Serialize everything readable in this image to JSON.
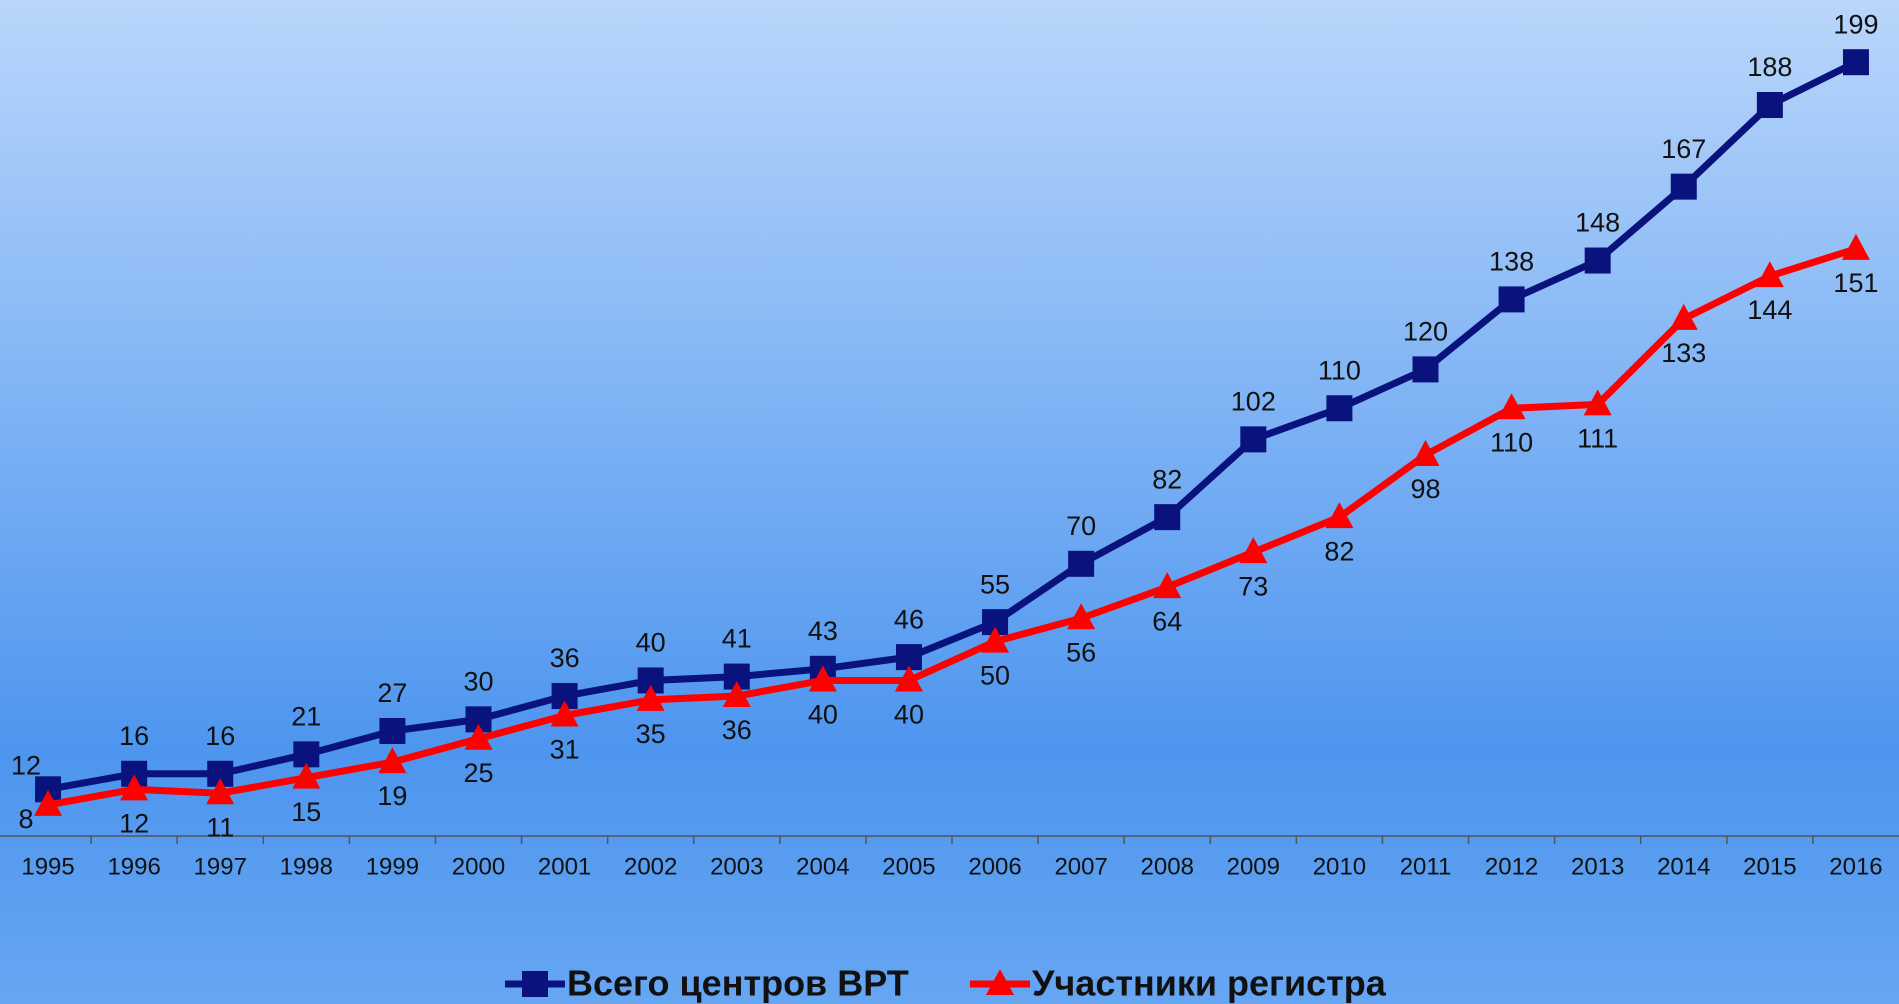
{
  "chart_data": {
    "type": "line",
    "categories": [
      "1995",
      "1996",
      "1997",
      "1998",
      "1999",
      "2000",
      "2001",
      "2002",
      "2003",
      "2004",
      "2005",
      "2006",
      "2007",
      "2008",
      "2009",
      "2010",
      "2011",
      "2012",
      "2013",
      "2014",
      "2015",
      "2016"
    ],
    "series": [
      {
        "name": "Всего центров ВРТ",
        "color": "#0a127e",
        "marker": "square",
        "values": [
          12,
          16,
          16,
          21,
          27,
          30,
          36,
          40,
          41,
          43,
          46,
          55,
          70,
          82,
          102,
          110,
          120,
          138,
          148,
          167,
          188,
          199
        ]
      },
      {
        "name": "Участники регистра",
        "color": "#ff0000",
        "marker": "triangle",
        "values": [
          8,
          12,
          11,
          15,
          19,
          25,
          31,
          35,
          36,
          40,
          40,
          50,
          56,
          64,
          73,
          82,
          98,
          110,
          111,
          133,
          144,
          151
        ]
      }
    ],
    "ylim": [
      0,
      215
    ],
    "legend": "bottom"
  }
}
